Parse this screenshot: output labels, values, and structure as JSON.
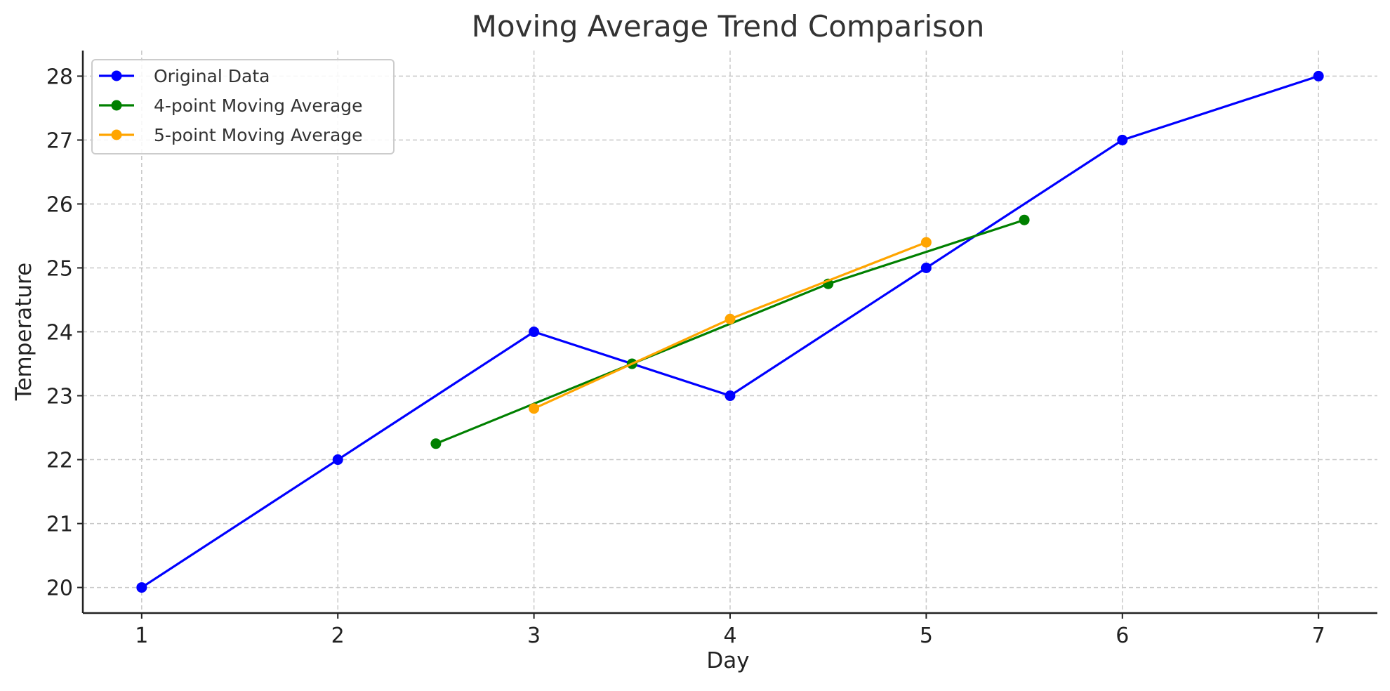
{
  "chart_data": {
    "type": "line",
    "title": "Moving Average Trend Comparison",
    "xlabel": "Day",
    "ylabel": "Temperature",
    "xlim": [
      0.7,
      7.3
    ],
    "ylim": [
      19.6,
      28.4
    ],
    "xticks": [
      1,
      2,
      3,
      4,
      5,
      6,
      7
    ],
    "yticks": [
      20,
      21,
      22,
      23,
      24,
      25,
      26,
      27,
      28
    ],
    "grid": true,
    "legend_position": "top-left",
    "series": [
      {
        "name": "Original Data",
        "color": "#0000ff",
        "x": [
          1,
          2,
          3,
          4,
          5,
          6,
          7
        ],
        "y": [
          20,
          22,
          24,
          23,
          25,
          27,
          28
        ]
      },
      {
        "name": "4-point Moving Average",
        "color": "#008000",
        "x": [
          2.5,
          3.5,
          4.5,
          5.5
        ],
        "y": [
          22.25,
          23.5,
          24.75,
          25.75
        ]
      },
      {
        "name": "5-point Moving Average",
        "color": "#ffa500",
        "x": [
          3,
          4,
          5
        ],
        "y": [
          22.8,
          24.2,
          25.4
        ]
      }
    ]
  }
}
